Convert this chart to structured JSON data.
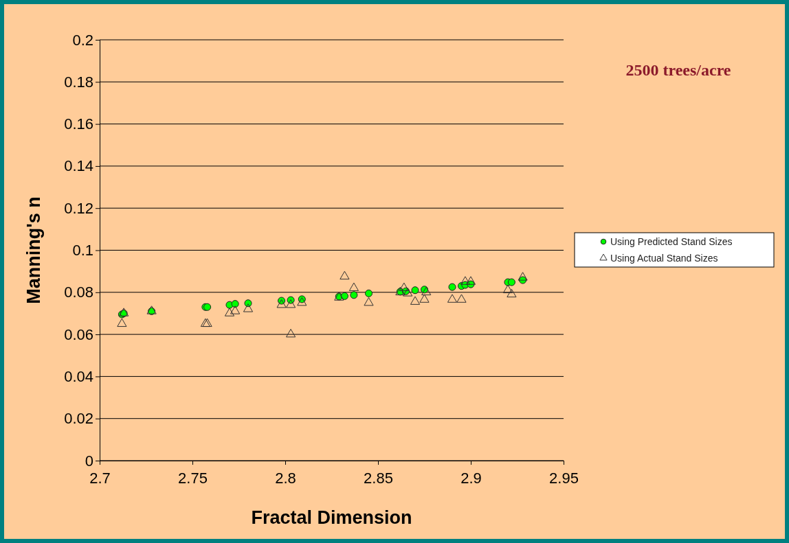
{
  "chart_data": {
    "type": "scatter",
    "title": "2500 trees/acre",
    "xlabel": "Fractal Dimension",
    "ylabel": "Manning's n",
    "xlim": [
      2.7,
      2.95
    ],
    "xticks": [
      2.7,
      2.75,
      2.8,
      2.85,
      2.9,
      2.95
    ],
    "ylim": [
      0,
      0.2
    ],
    "yticks": [
      0,
      0.02,
      0.04,
      0.06,
      0.08,
      0.1,
      0.12,
      0.14,
      0.16,
      0.18,
      0.2
    ],
    "grid": "y",
    "legend": "right",
    "series": [
      {
        "name": "Using Predicted Stand Sizes",
        "color": "#00ff00",
        "marker": "circle",
        "x": [
          2.712,
          2.713,
          2.728,
          2.757,
          2.758,
          2.77,
          2.773,
          2.78,
          2.798,
          2.803,
          2.809,
          2.829,
          2.832,
          2.837,
          2.845,
          2.862,
          2.865,
          2.87,
          2.875,
          2.89,
          2.895,
          2.897,
          2.9,
          2.92,
          2.922,
          2.928
        ],
        "values": [
          0.0695,
          0.07,
          0.071,
          0.073,
          0.073,
          0.074,
          0.0745,
          0.0748,
          0.076,
          0.0763,
          0.0767,
          0.078,
          0.0782,
          0.0787,
          0.0795,
          0.0803,
          0.0805,
          0.081,
          0.0813,
          0.0825,
          0.083,
          0.0835,
          0.0838,
          0.0848,
          0.0848,
          0.0858
        ]
      },
      {
        "name": "Using Actual Stand Sizes",
        "color": "#333333",
        "marker": "triangle",
        "x": [
          2.712,
          2.713,
          2.728,
          2.757,
          2.758,
          2.77,
          2.773,
          2.78,
          2.798,
          2.803,
          2.803,
          2.809,
          2.829,
          2.832,
          2.837,
          2.845,
          2.862,
          2.864,
          2.866,
          2.87,
          2.875,
          2.876,
          2.89,
          2.895,
          2.897,
          2.9,
          2.92,
          2.922,
          2.928
        ],
        "values": [
          0.065,
          0.07,
          0.071,
          0.065,
          0.065,
          0.07,
          0.071,
          0.072,
          0.074,
          0.06,
          0.074,
          0.075,
          0.0775,
          0.0875,
          0.082,
          0.075,
          0.08,
          0.082,
          0.0795,
          0.0755,
          0.0765,
          0.08,
          0.0765,
          0.0765,
          0.085,
          0.085,
          0.081,
          0.079,
          0.087
        ]
      }
    ]
  }
}
